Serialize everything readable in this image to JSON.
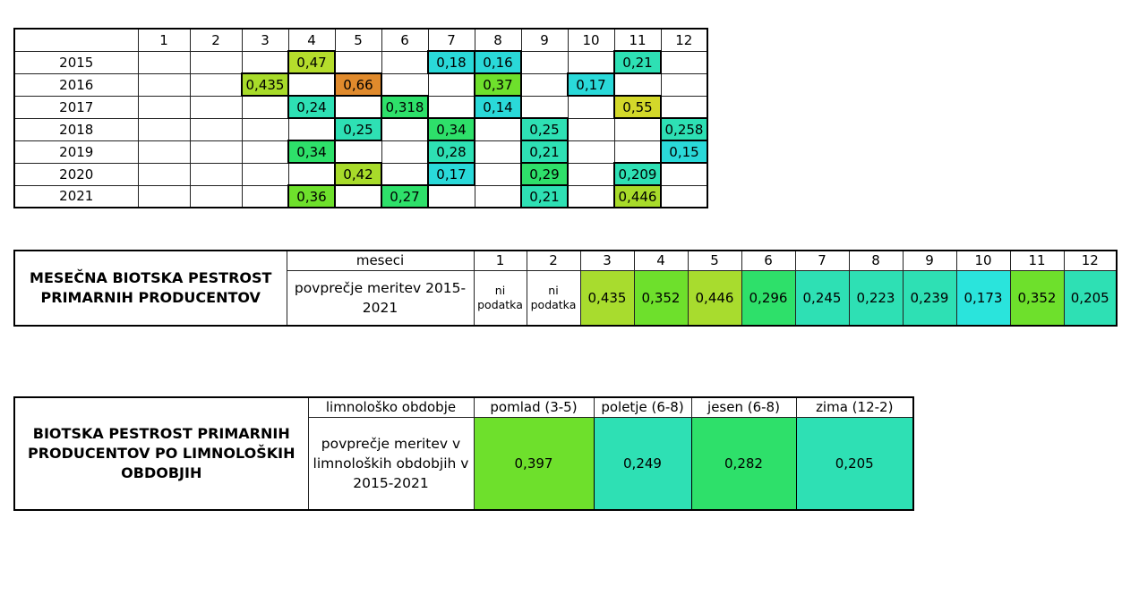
{
  "chart_data": [
    {
      "type": "table",
      "columns": [
        "1",
        "2",
        "3",
        "4",
        "5",
        "6",
        "7",
        "8",
        "9",
        "10",
        "11",
        "12"
      ],
      "rows": [
        {
          "label": "2015",
          "values": [
            "",
            "",
            "",
            "0,47",
            "",
            "",
            "0,18",
            "0,16",
            "",
            "",
            "0,21",
            ""
          ],
          "colors": [
            "",
            "",
            "",
            "#b5dd2c",
            "",
            "",
            "#2ad9d9",
            "#2ad9d9",
            "",
            "",
            "#2ee0b4",
            ""
          ]
        },
        {
          "label": "2016",
          "values": [
            "",
            "",
            "0,435",
            "",
            "0,66",
            "",
            "",
            "0,37",
            "",
            "0,17",
            "",
            ""
          ],
          "colors": [
            "",
            "",
            "#a8db2a",
            "",
            "#e08a2c",
            "",
            "",
            "#6ee02c",
            "",
            "#2ad9d9",
            "",
            ""
          ]
        },
        {
          "label": "2017",
          "values": [
            "",
            "",
            "",
            "0,24",
            "",
            "0,318",
            "",
            "0,14",
            "",
            "",
            "0,55",
            ""
          ],
          "colors": [
            "",
            "",
            "",
            "#2ee0b4",
            "",
            "#2ee06a",
            "",
            "#2ad9d9",
            "",
            "",
            "#d3d82a",
            ""
          ]
        },
        {
          "label": "2018",
          "values": [
            "",
            "",
            "",
            "",
            "0,25",
            "",
            "0,34",
            "",
            "0,25",
            "",
            "",
            "0,258"
          ],
          "colors": [
            "",
            "",
            "",
            "",
            "#2ee0b4",
            "",
            "#2ee06a",
            "",
            "#2ee0b4",
            "",
            "",
            "#2ee0b4"
          ]
        },
        {
          "label": "2019",
          "values": [
            "",
            "",
            "",
            "0,34",
            "",
            "",
            "0,28",
            "",
            "0,21",
            "",
            "",
            "0,15"
          ],
          "colors": [
            "",
            "",
            "",
            "#2ee06a",
            "",
            "",
            "#2ee0b4",
            "",
            "#2ee0b4",
            "",
            "",
            "#2ad9d9"
          ]
        },
        {
          "label": "2020",
          "values": [
            "",
            "",
            "",
            "",
            "0,42",
            "",
            "0,17",
            "",
            "0,29",
            "",
            "0,209",
            ""
          ],
          "colors": [
            "",
            "",
            "",
            "",
            "#a8db2a",
            "",
            "#2ad9d9",
            "",
            "#2ee06a",
            "",
            "#2ee0b4",
            ""
          ]
        },
        {
          "label": "2021",
          "values": [
            "",
            "",
            "",
            "0,36",
            "",
            "0,27",
            "",
            "",
            "0,21",
            "",
            "0,446",
            ""
          ],
          "colors": [
            "",
            "",
            "",
            "#6ee02c",
            "",
            "#2ee06a",
            "",
            "",
            "#2ee0b4",
            "",
            "#a8db2a",
            ""
          ]
        }
      ]
    },
    {
      "type": "table",
      "title": "MESEČNA BIOTSKA PESTROST PRIMARNIH PRODUCENTOV",
      "header_label": "meseci",
      "row_label": "povprečje meritev 2015-2021",
      "months": [
        "1",
        "2",
        "3",
        "4",
        "5",
        "6",
        "7",
        "8",
        "9",
        "10",
        "11",
        "12"
      ],
      "values": [
        "ni podatka",
        "ni podatka",
        "0,435",
        "0,352",
        "0,446",
        "0,296",
        "0,245",
        "0,223",
        "0,239",
        "0,173",
        "0,352",
        "0,205"
      ],
      "colors": [
        "",
        "",
        "#a8dc2e",
        "#6ee02c",
        "#a8dc2e",
        "#2ee06a",
        "#2ee0b4",
        "#2ee0b4",
        "#2ee0b4",
        "#2ae4dc",
        "#6ee02c",
        "#2ee0b4"
      ]
    },
    {
      "type": "table",
      "title": "BIOTSKA PESTROST PRIMARNIH PRODUCENTOV PO LIMNOLOŠKIH OBDOBJIH",
      "header_label": "limnološko obdobje",
      "row_label": "povprečje meritev v limnoloških obdobjih v 2015-2021",
      "periods": [
        "pomlad (3-5)",
        "poletje (6-8)",
        "jesen (6-8)",
        "zima (12-2)"
      ],
      "values": [
        "0,397",
        "0,249",
        "0,282",
        "0,205"
      ],
      "colors": [
        "#6ee02c",
        "#2ee0b4",
        "#2ee06a",
        "#2ee0b4"
      ]
    }
  ]
}
